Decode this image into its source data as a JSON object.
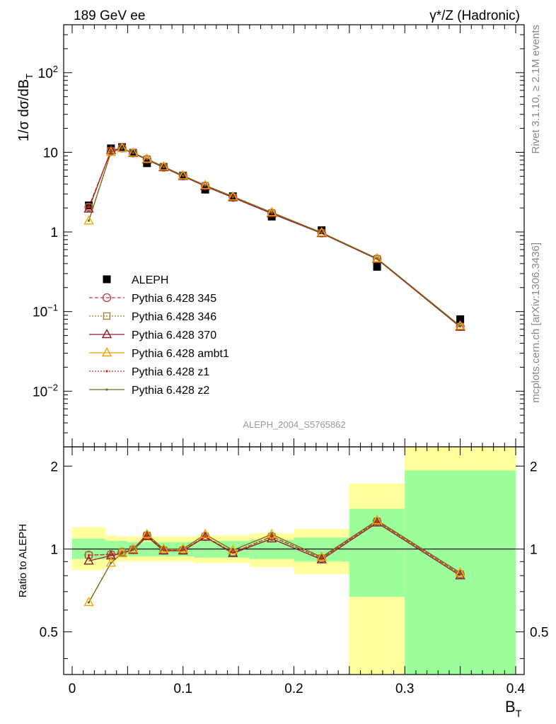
{
  "header": {
    "left": "189 GeV ee",
    "right": "γ*/Z (Hadronic)"
  },
  "side_labels": {
    "rivet": "Rivet 3.1.10, ≥ 2.1M events",
    "mcplots": "mcplots.cern.ch [arXiv:1306.3436]"
  },
  "analysis_id": "ALEPH_2004_S5765862",
  "chart_data": [
    {
      "panel": "main",
      "type": "scatter",
      "ylabel": "1/σ dσ/dB_T",
      "xlim": [
        0,
        0.4
      ],
      "ylim": [
        0.002,
        400
      ],
      "log_y": true,
      "y_tick_labels": [
        "10^-2",
        "10^-1",
        "1",
        "10",
        "10^2"
      ],
      "x_centers": [
        0.015,
        0.035,
        0.045,
        0.055,
        0.0675,
        0.0825,
        0.1,
        0.12,
        0.145,
        0.18,
        0.225,
        0.275,
        0.35
      ],
      "x_edges": [
        0.0,
        0.03,
        0.04,
        0.05,
        0.06,
        0.075,
        0.09,
        0.11,
        0.13,
        0.16,
        0.2,
        0.25,
        0.3,
        0.4
      ],
      "legend_position": "bottom-left",
      "legend": [
        {
          "name": "ALEPH",
          "color": "#000000",
          "marker": "filled-square",
          "line": "none"
        },
        {
          "name": "Pythia 6.428 345",
          "color": "#c0394b",
          "marker": "open-circle",
          "line": "dashed"
        },
        {
          "name": "Pythia 6.428 346",
          "color": "#a0782e",
          "marker": "open-square",
          "line": "dotted"
        },
        {
          "name": "Pythia 6.428 370",
          "color": "#8b1c2b",
          "marker": "open-triangle",
          "line": "solid"
        },
        {
          "name": "Pythia 6.428 ambt1",
          "color": "#f2a500",
          "marker": "open-triangle",
          "line": "solid"
        },
        {
          "name": "Pythia 6.428 z1",
          "color": "#e0201a",
          "marker": "dot",
          "line": "dotted"
        },
        {
          "name": "Pythia 6.428 z2",
          "color": "#6b6b1e",
          "marker": "dot",
          "line": "solid"
        }
      ],
      "series": [
        {
          "name": "ALEPH",
          "values": [
            2.15,
            11.2,
            11.6,
            9.85,
            7.3,
            6.55,
            5.1,
            3.4,
            2.8,
            1.56,
            1.05,
            0.365,
            0.08
          ]
        },
        {
          "name": "Pythia 6.428 345",
          "values": [
            2.05,
            10.4,
            11.3,
            9.8,
            8.2,
            6.5,
            5.05,
            3.8,
            2.72,
            1.73,
            0.97,
            0.46,
            0.065
          ]
        },
        {
          "name": "Pythia 6.428 346",
          "values": [
            2.05,
            10.4,
            11.3,
            9.8,
            8.2,
            6.5,
            5.05,
            3.8,
            2.72,
            1.73,
            0.97,
            0.46,
            0.065
          ]
        },
        {
          "name": "Pythia 6.428 370",
          "values": [
            1.95,
            10.6,
            11.2,
            9.75,
            8.1,
            6.45,
            5.0,
            3.75,
            2.7,
            1.7,
            0.96,
            0.455,
            0.064
          ]
        },
        {
          "name": "Pythia 6.428 ambt1",
          "values": [
            1.38,
            10.0,
            11.2,
            9.85,
            8.25,
            6.6,
            5.1,
            3.85,
            2.78,
            1.76,
            0.98,
            0.465,
            0.066
          ]
        },
        {
          "name": "Pythia 6.428 z1",
          "values": [
            2.05,
            10.4,
            11.3,
            9.8,
            8.2,
            6.5,
            5.05,
            3.8,
            2.72,
            1.73,
            0.97,
            0.46,
            0.065
          ]
        },
        {
          "name": "Pythia 6.428 z2",
          "values": [
            1.38,
            10.0,
            11.2,
            9.85,
            8.25,
            6.6,
            5.1,
            3.85,
            2.78,
            1.76,
            0.98,
            0.465,
            0.066
          ]
        }
      ]
    },
    {
      "panel": "ratio",
      "type": "line",
      "ylabel": "Ratio to ALEPH",
      "xlabel": "B_T",
      "xlim": [
        0,
        0.4
      ],
      "ylim": [
        0.35,
        2.35
      ],
      "log_y": true,
      "x_tick_labels": [
        "0",
        "0.1",
        "0.2",
        "0.3",
        "0.4"
      ],
      "y_tick_labels": [
        "0.5",
        "1",
        "2"
      ],
      "x_centers": [
        0.015,
        0.035,
        0.045,
        0.055,
        0.0675,
        0.0825,
        0.1,
        0.12,
        0.145,
        0.18,
        0.225,
        0.275,
        0.35
      ],
      "bands": {
        "x_edges": [
          0.0,
          0.03,
          0.04,
          0.05,
          0.06,
          0.075,
          0.09,
          0.11,
          0.13,
          0.16,
          0.2,
          0.25,
          0.3,
          0.4
        ],
        "inner_color": "#9cff9c",
        "outer_color": "#ffff9c",
        "inner": [
          [
            0.92,
            1.09
          ],
          [
            0.94,
            1.07
          ],
          [
            0.94,
            1.07
          ],
          [
            0.94,
            1.06
          ],
          [
            0.94,
            1.06
          ],
          [
            0.94,
            1.06
          ],
          [
            0.94,
            1.06
          ],
          [
            0.93,
            1.07
          ],
          [
            0.93,
            1.07
          ],
          [
            0.92,
            1.08
          ],
          [
            0.9,
            1.1
          ],
          [
            0.67,
            1.4
          ],
          [
            0.3,
            1.93
          ]
        ],
        "outer": [
          [
            0.84,
            1.2
          ],
          [
            0.89,
            1.12
          ],
          [
            0.9,
            1.11
          ],
          [
            0.9,
            1.11
          ],
          [
            0.9,
            1.11
          ],
          [
            0.9,
            1.11
          ],
          [
            0.9,
            1.11
          ],
          [
            0.89,
            1.12
          ],
          [
            0.89,
            1.12
          ],
          [
            0.86,
            1.14
          ],
          [
            0.81,
            1.18
          ],
          [
            0.3,
            1.73
          ],
          [
            0.3,
            2.5
          ]
        ]
      },
      "series": [
        {
          "name": "Pythia 6.428 345",
          "values": [
            0.95,
            0.955,
            0.975,
            0.995,
            1.12,
            0.99,
            0.99,
            1.11,
            0.97,
            1.11,
            0.925,
            1.26,
            0.81
          ]
        },
        {
          "name": "Pythia 6.428 346",
          "values": [
            0.95,
            0.955,
            0.975,
            0.995,
            1.12,
            0.99,
            0.99,
            1.11,
            0.97,
            1.11,
            0.925,
            1.26,
            0.81
          ]
        },
        {
          "name": "Pythia 6.428 370",
          "values": [
            0.905,
            0.945,
            0.965,
            0.99,
            1.11,
            0.985,
            0.985,
            1.105,
            0.965,
            1.09,
            0.915,
            1.245,
            0.8
          ]
        },
        {
          "name": "Pythia 6.428 ambt1",
          "values": [
            0.64,
            0.89,
            0.965,
            1.0,
            1.13,
            1.0,
            1.0,
            1.13,
            0.99,
            1.13,
            0.935,
            1.27,
            0.82
          ]
        },
        {
          "name": "Pythia 6.428 z1",
          "values": [
            0.95,
            0.955,
            0.975,
            0.995,
            1.12,
            0.99,
            0.99,
            1.11,
            0.97,
            1.11,
            0.925,
            1.26,
            0.81
          ]
        },
        {
          "name": "Pythia 6.428 z2",
          "values": [
            0.64,
            0.89,
            0.965,
            1.0,
            1.13,
            1.0,
            1.0,
            1.13,
            0.99,
            1.13,
            0.935,
            1.27,
            0.82
          ]
        }
      ]
    }
  ]
}
